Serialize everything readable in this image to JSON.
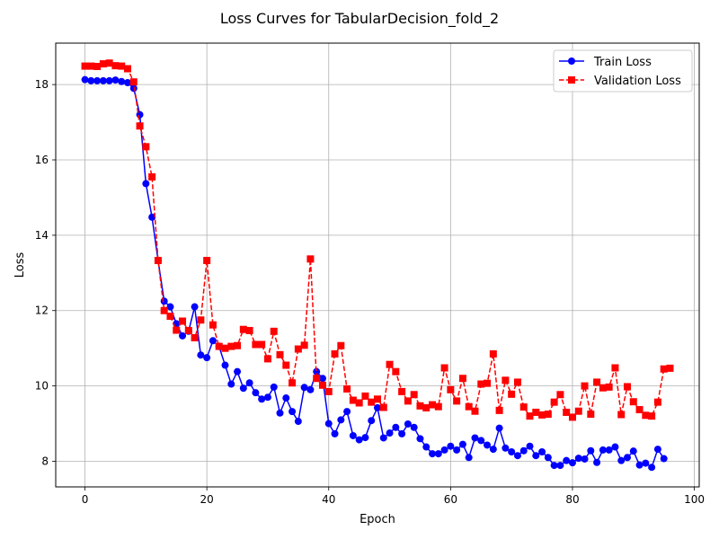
{
  "chart_data": {
    "type": "line",
    "title": "Loss Curves for TabularDecision_fold_2",
    "xlabel": "Epoch",
    "ylabel": "Loss",
    "xlim": [
      -4.8,
      100.8
    ],
    "ylim": [
      7.32,
      19.1
    ],
    "xticks": [
      0,
      20,
      40,
      60,
      80,
      100
    ],
    "yticks": [
      8,
      10,
      12,
      14,
      16,
      18
    ],
    "grid": true,
    "legend_position": "top-right",
    "series": [
      {
        "name": "Train Loss",
        "color": "#0000ff",
        "linestyle": "solid",
        "marker": "circle",
        "x": [
          0,
          1,
          2,
          3,
          4,
          5,
          6,
          7,
          8,
          9,
          10,
          11,
          12,
          13,
          14,
          15,
          16,
          17,
          18,
          19,
          20,
          21,
          22,
          23,
          24,
          25,
          26,
          27,
          28,
          29,
          30,
          31,
          32,
          33,
          34,
          35,
          36,
          37,
          38,
          39,
          40,
          41,
          42,
          43,
          44,
          45,
          46,
          47,
          48,
          49,
          50,
          51,
          52,
          53,
          54,
          55,
          56,
          57,
          58,
          59,
          60,
          61,
          62,
          63,
          64,
          65,
          66,
          67,
          68,
          69,
          70,
          71,
          72,
          73,
          74,
          75,
          76,
          77,
          78,
          79,
          80,
          81,
          82,
          83,
          84,
          85,
          86,
          87,
          88,
          89,
          90,
          91,
          92,
          93,
          94,
          95
        ],
        "y": [
          18.13,
          18.1,
          18.1,
          18.1,
          18.1,
          18.12,
          18.08,
          18.05,
          17.9,
          17.2,
          15.37,
          14.48,
          13.33,
          12.25,
          12.1,
          11.65,
          11.33,
          11.45,
          12.1,
          10.82,
          10.75,
          11.2,
          11.05,
          10.55,
          10.05,
          10.38,
          9.94,
          10.08,
          9.82,
          9.65,
          9.7,
          9.97,
          9.28,
          9.68,
          9.32,
          9.06,
          9.96,
          9.9,
          10.38,
          10.2,
          9.0,
          8.73,
          9.1,
          9.32,
          8.68,
          8.57,
          8.63,
          9.08,
          9.42,
          8.62,
          8.75,
          8.9,
          8.73,
          8.99,
          8.9,
          8.6,
          8.38,
          8.2,
          8.2,
          8.3,
          8.4,
          8.3,
          8.45,
          8.1,
          8.62,
          8.55,
          8.43,
          8.32,
          8.88,
          8.35,
          8.25,
          8.15,
          8.28,
          8.4,
          8.15,
          8.25,
          8.1,
          7.89,
          7.89,
          8.02,
          7.96,
          8.08,
          8.06,
          8.28,
          7.97,
          8.3,
          8.3,
          8.38,
          8.02,
          8.1,
          8.27,
          7.9,
          7.95,
          7.84,
          8.32,
          8.07
        ]
      },
      {
        "name": "Validation Loss",
        "color": "#ff0000",
        "linestyle": "dashed",
        "marker": "square",
        "x": [
          0,
          1,
          2,
          3,
          4,
          5,
          6,
          7,
          8,
          9,
          10,
          11,
          12,
          13,
          14,
          15,
          16,
          17,
          18,
          19,
          20,
          21,
          22,
          23,
          24,
          25,
          26,
          27,
          28,
          29,
          30,
          31,
          32,
          33,
          34,
          35,
          36,
          37,
          38,
          39,
          40,
          41,
          42,
          43,
          44,
          45,
          46,
          47,
          48,
          49,
          50,
          51,
          52,
          53,
          54,
          55,
          56,
          57,
          58,
          59,
          60,
          61,
          62,
          63,
          64,
          65,
          66,
          67,
          68,
          69,
          70,
          71,
          72,
          73,
          74,
          75,
          76,
          77,
          78,
          79,
          80,
          81,
          82,
          83,
          84,
          85,
          86,
          87,
          88,
          89,
          90,
          91,
          92,
          93,
          94,
          95,
          96
        ],
        "y": [
          18.49,
          18.49,
          18.48,
          18.55,
          18.57,
          18.5,
          18.49,
          18.42,
          18.07,
          16.9,
          16.35,
          15.55,
          13.33,
          12.0,
          11.85,
          11.48,
          11.72,
          11.47,
          11.28,
          11.75,
          13.33,
          11.62,
          11.05,
          11.0,
          11.05,
          11.07,
          11.5,
          11.47,
          11.1,
          11.1,
          10.72,
          11.45,
          10.83,
          10.55,
          10.08,
          10.98,
          11.08,
          13.37,
          10.2,
          10.02,
          9.85,
          10.85,
          11.07,
          9.92,
          9.62,
          9.55,
          9.73,
          9.57,
          9.65,
          9.43,
          10.57,
          10.38,
          9.85,
          9.6,
          9.77,
          9.47,
          9.42,
          9.5,
          9.45,
          10.48,
          9.9,
          9.6,
          10.2,
          9.45,
          9.33,
          10.05,
          10.07,
          10.85,
          9.35,
          10.15,
          9.78,
          10.1,
          9.44,
          9.2,
          9.3,
          9.23,
          9.25,
          9.57,
          9.77,
          9.3,
          9.17,
          9.33,
          10.0,
          9.25,
          10.1,
          9.95,
          9.97,
          10.48,
          9.24,
          9.98,
          9.58,
          9.37,
          9.22,
          9.2,
          9.57,
          10.45,
          10.47
        ]
      }
    ]
  }
}
